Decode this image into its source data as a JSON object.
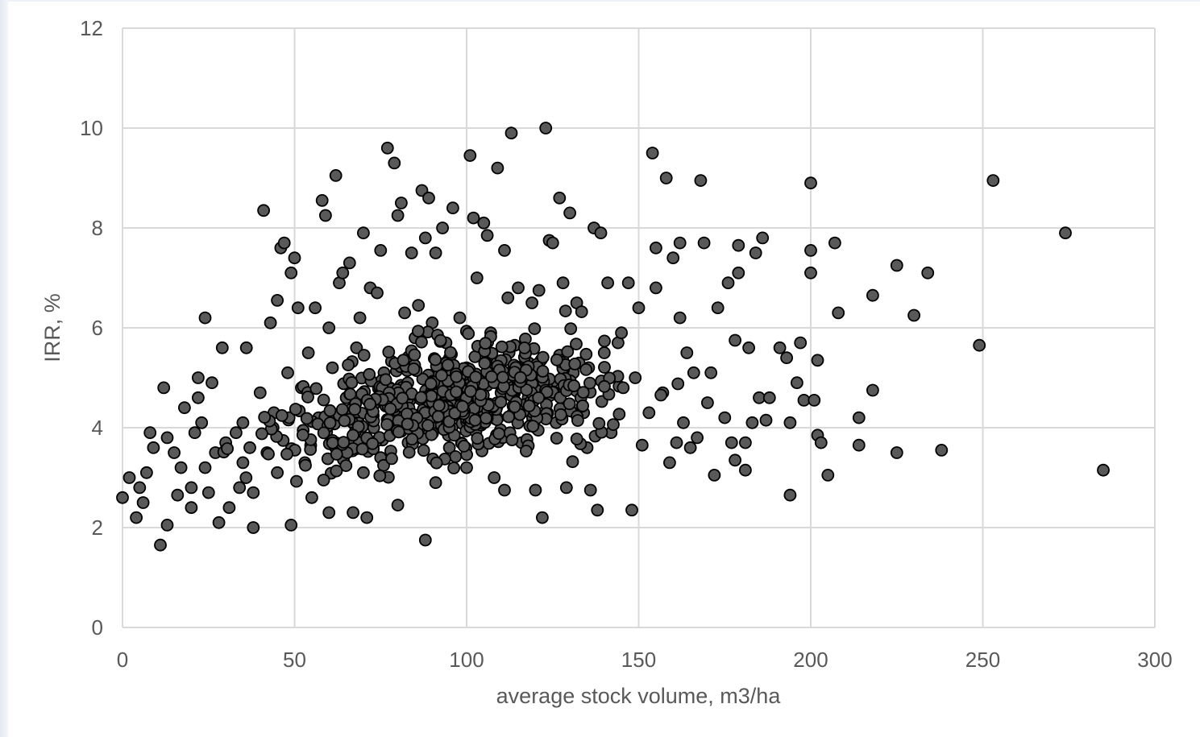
{
  "colors": {
    "marker_fill": "#595959",
    "marker_stroke": "#000000",
    "grid": "#d9d9d9",
    "axis_text": "#595959"
  },
  "chart_data": {
    "type": "scatter",
    "title": "",
    "xlabel": "average stock volume,  m3/ha",
    "ylabel": "IRR, %",
    "xlim": [
      0,
      300
    ],
    "ylim": [
      0,
      12
    ],
    "xticks": [
      0,
      50,
      100,
      150,
      200,
      250,
      300
    ],
    "yticks": [
      0,
      2,
      4,
      6,
      8,
      10,
      12
    ],
    "grid": true,
    "legend": "none",
    "points": [
      [
        0,
        2.6
      ],
      [
        2,
        3
      ],
      [
        4,
        2.2
      ],
      [
        5,
        2.8
      ],
      [
        7,
        3.1
      ],
      [
        6,
        2.5
      ],
      [
        8,
        3.9
      ],
      [
        9,
        3.6
      ],
      [
        11,
        1.65
      ],
      [
        12,
        4.8
      ],
      [
        13,
        2.05
      ],
      [
        13,
        3.8
      ],
      [
        15,
        3.5
      ],
      [
        16,
        2.65
      ],
      [
        18,
        4.4
      ],
      [
        17,
        3.2
      ],
      [
        20,
        2.8
      ],
      [
        20,
        2.4
      ],
      [
        21,
        3.9
      ],
      [
        22,
        4.6
      ],
      [
        22,
        5
      ],
      [
        23,
        4.1
      ],
      [
        24,
        3.2
      ],
      [
        24,
        6.2
      ],
      [
        25,
        2.7
      ],
      [
        26,
        4.9
      ],
      [
        27,
        3.5
      ],
      [
        28,
        2.1
      ],
      [
        29,
        5.6
      ],
      [
        30,
        3.7
      ],
      [
        31,
        2.4
      ],
      [
        33,
        3.9
      ],
      [
        34,
        2.8
      ],
      [
        35,
        4.1
      ],
      [
        35,
        3.3
      ],
      [
        36,
        5.6
      ],
      [
        37,
        3.6
      ],
      [
        38,
        2
      ],
      [
        38,
        2.7
      ],
      [
        40,
        4.7
      ],
      [
        41,
        8.35
      ],
      [
        42,
        3.5
      ],
      [
        43,
        6.1
      ],
      [
        44,
        4.3
      ],
      [
        45,
        6.55
      ],
      [
        45,
        3.1
      ],
      [
        46,
        7.6
      ],
      [
        47,
        7.7
      ],
      [
        48,
        5.1
      ],
      [
        49,
        7.1
      ],
      [
        50,
        7.4
      ],
      [
        49,
        2.05
      ],
      [
        51,
        6.4
      ],
      [
        52,
        4.8
      ],
      [
        53,
        3.3
      ],
      [
        54,
        5.5
      ],
      [
        55,
        2.6
      ],
      [
        56,
        6.4
      ],
      [
        57,
        4.2
      ],
      [
        58,
        8.55
      ],
      [
        59,
        8.25
      ],
      [
        60,
        6
      ],
      [
        60,
        2.3
      ],
      [
        61,
        5.2
      ],
      [
        62,
        9.05
      ],
      [
        62,
        3.7
      ],
      [
        63,
        6.9
      ],
      [
        64,
        7.1
      ],
      [
        65,
        4.6
      ],
      [
        66,
        7.3
      ],
      [
        67,
        2.3
      ],
      [
        68,
        5.6
      ],
      [
        69,
        6.2
      ],
      [
        70,
        7.9
      ],
      [
        70,
        3.1
      ],
      [
        71,
        2.2
      ],
      [
        72,
        6.8
      ],
      [
        73,
        4
      ],
      [
        74,
        6.7
      ],
      [
        75,
        7.55
      ],
      [
        75,
        3.4
      ],
      [
        76,
        5.1
      ],
      [
        77,
        9.6
      ],
      [
        78,
        4.2
      ],
      [
        79,
        9.3
      ],
      [
        80,
        8.25
      ],
      [
        80,
        2.45
      ],
      [
        81,
        8.5
      ],
      [
        82,
        6.3
      ],
      [
        83,
        3.7
      ],
      [
        84,
        7.5
      ],
      [
        85,
        5.8
      ],
      [
        86,
        6.45
      ],
      [
        87,
        8.75
      ],
      [
        88,
        7.8
      ],
      [
        88,
        1.75
      ],
      [
        89,
        8.6
      ],
      [
        90,
        6.1
      ],
      [
        91,
        7.5
      ],
      [
        91,
        2.9
      ],
      [
        92,
        4.4
      ],
      [
        93,
        8
      ],
      [
        94,
        5.7
      ],
      [
        95,
        3.6
      ],
      [
        96,
        8.4
      ],
      [
        97,
        4.9
      ],
      [
        98,
        6.2
      ],
      [
        100,
        5.2
      ],
      [
        100,
        3.2
      ],
      [
        101,
        9.45
      ],
      [
        102,
        8.2
      ],
      [
        103,
        7
      ],
      [
        104,
        4.6
      ],
      [
        105,
        8.1
      ],
      [
        106,
        7.85
      ],
      [
        107,
        5.9
      ],
      [
        108,
        3
      ],
      [
        109,
        9.2
      ],
      [
        110,
        4.7
      ],
      [
        111,
        7.55
      ],
      [
        111,
        2.75
      ],
      [
        112,
        6.6
      ],
      [
        113,
        9.9
      ],
      [
        114,
        4.9
      ],
      [
        115,
        6.8
      ],
      [
        116,
        3.7
      ],
      [
        118,
        5.3
      ],
      [
        119,
        6.5
      ],
      [
        120,
        2.75
      ],
      [
        121,
        6.75
      ],
      [
        122,
        2.2
      ],
      [
        123,
        10
      ],
      [
        124,
        7.75
      ],
      [
        125,
        7.7
      ],
      [
        126,
        4.1
      ],
      [
        127,
        8.6
      ],
      [
        128,
        6.9
      ],
      [
        129,
        2.8
      ],
      [
        130,
        8.3
      ],
      [
        131,
        5.1
      ],
      [
        132,
        6.5
      ],
      [
        134,
        4.3
      ],
      [
        135,
        3.6
      ],
      [
        136,
        2.75
      ],
      [
        137,
        8
      ],
      [
        138,
        2.35
      ],
      [
        139,
        7.9
      ],
      [
        140,
        5.5
      ],
      [
        141,
        6.9
      ],
      [
        142,
        3.9
      ],
      [
        144,
        5.7
      ],
      [
        145,
        5.9
      ],
      [
        147,
        6.9
      ],
      [
        148,
        2.35
      ],
      [
        149,
        5
      ],
      [
        150,
        6.4
      ],
      [
        151,
        3.65
      ],
      [
        153,
        4.3
      ],
      [
        154,
        9.5
      ],
      [
        155,
        6.8
      ],
      [
        155,
        7.6
      ],
      [
        157,
        4.7
      ],
      [
        158,
        9
      ],
      [
        159,
        3.3
      ],
      [
        160,
        7.4
      ],
      [
        161,
        3.7
      ],
      [
        162,
        7.7
      ],
      [
        162,
        6.2
      ],
      [
        163,
        4.1
      ],
      [
        164,
        5.5
      ],
      [
        165,
        3.6
      ],
      [
        166,
        5.1
      ],
      [
        167,
        3.8
      ],
      [
        168,
        8.95
      ],
      [
        169,
        7.7
      ],
      [
        170,
        4.5
      ],
      [
        171,
        5.1
      ],
      [
        172,
        3.05
      ],
      [
        173,
        6.4
      ],
      [
        175,
        4.2
      ],
      [
        176,
        6.9
      ],
      [
        177,
        3.7
      ],
      [
        178,
        5.75
      ],
      [
        178,
        3.35
      ],
      [
        179,
        7.1
      ],
      [
        179,
        7.65
      ],
      [
        181,
        3.7
      ],
      [
        181,
        3.15
      ],
      [
        182,
        5.6
      ],
      [
        183,
        4.1
      ],
      [
        184,
        7.5
      ],
      [
        185,
        4.6
      ],
      [
        186,
        7.8
      ],
      [
        187,
        4.15
      ],
      [
        188,
        4.6
      ],
      [
        191,
        5.6
      ],
      [
        193,
        5.4
      ],
      [
        194,
        4.1
      ],
      [
        194,
        2.65
      ],
      [
        196,
        4.9
      ],
      [
        197,
        5.7
      ],
      [
        198,
        4.55
      ],
      [
        200,
        8.9
      ],
      [
        200,
        7.55
      ],
      [
        200,
        7.1
      ],
      [
        201,
        4.55
      ],
      [
        202,
        3.85
      ],
      [
        203,
        3.7
      ],
      [
        202,
        5.35
      ],
      [
        205,
        3.05
      ],
      [
        207,
        7.7
      ],
      [
        208,
        6.3
      ],
      [
        214,
        4.2
      ],
      [
        214,
        3.65
      ],
      [
        218,
        6.65
      ],
      [
        218,
        4.75
      ],
      [
        225,
        3.5
      ],
      [
        225,
        7.25
      ],
      [
        230,
        6.25
      ],
      [
        234,
        7.1
      ],
      [
        238,
        3.55
      ],
      [
        249,
        5.65
      ],
      [
        253,
        8.95
      ],
      [
        274,
        7.9
      ],
      [
        285,
        3.15
      ]
    ]
  }
}
